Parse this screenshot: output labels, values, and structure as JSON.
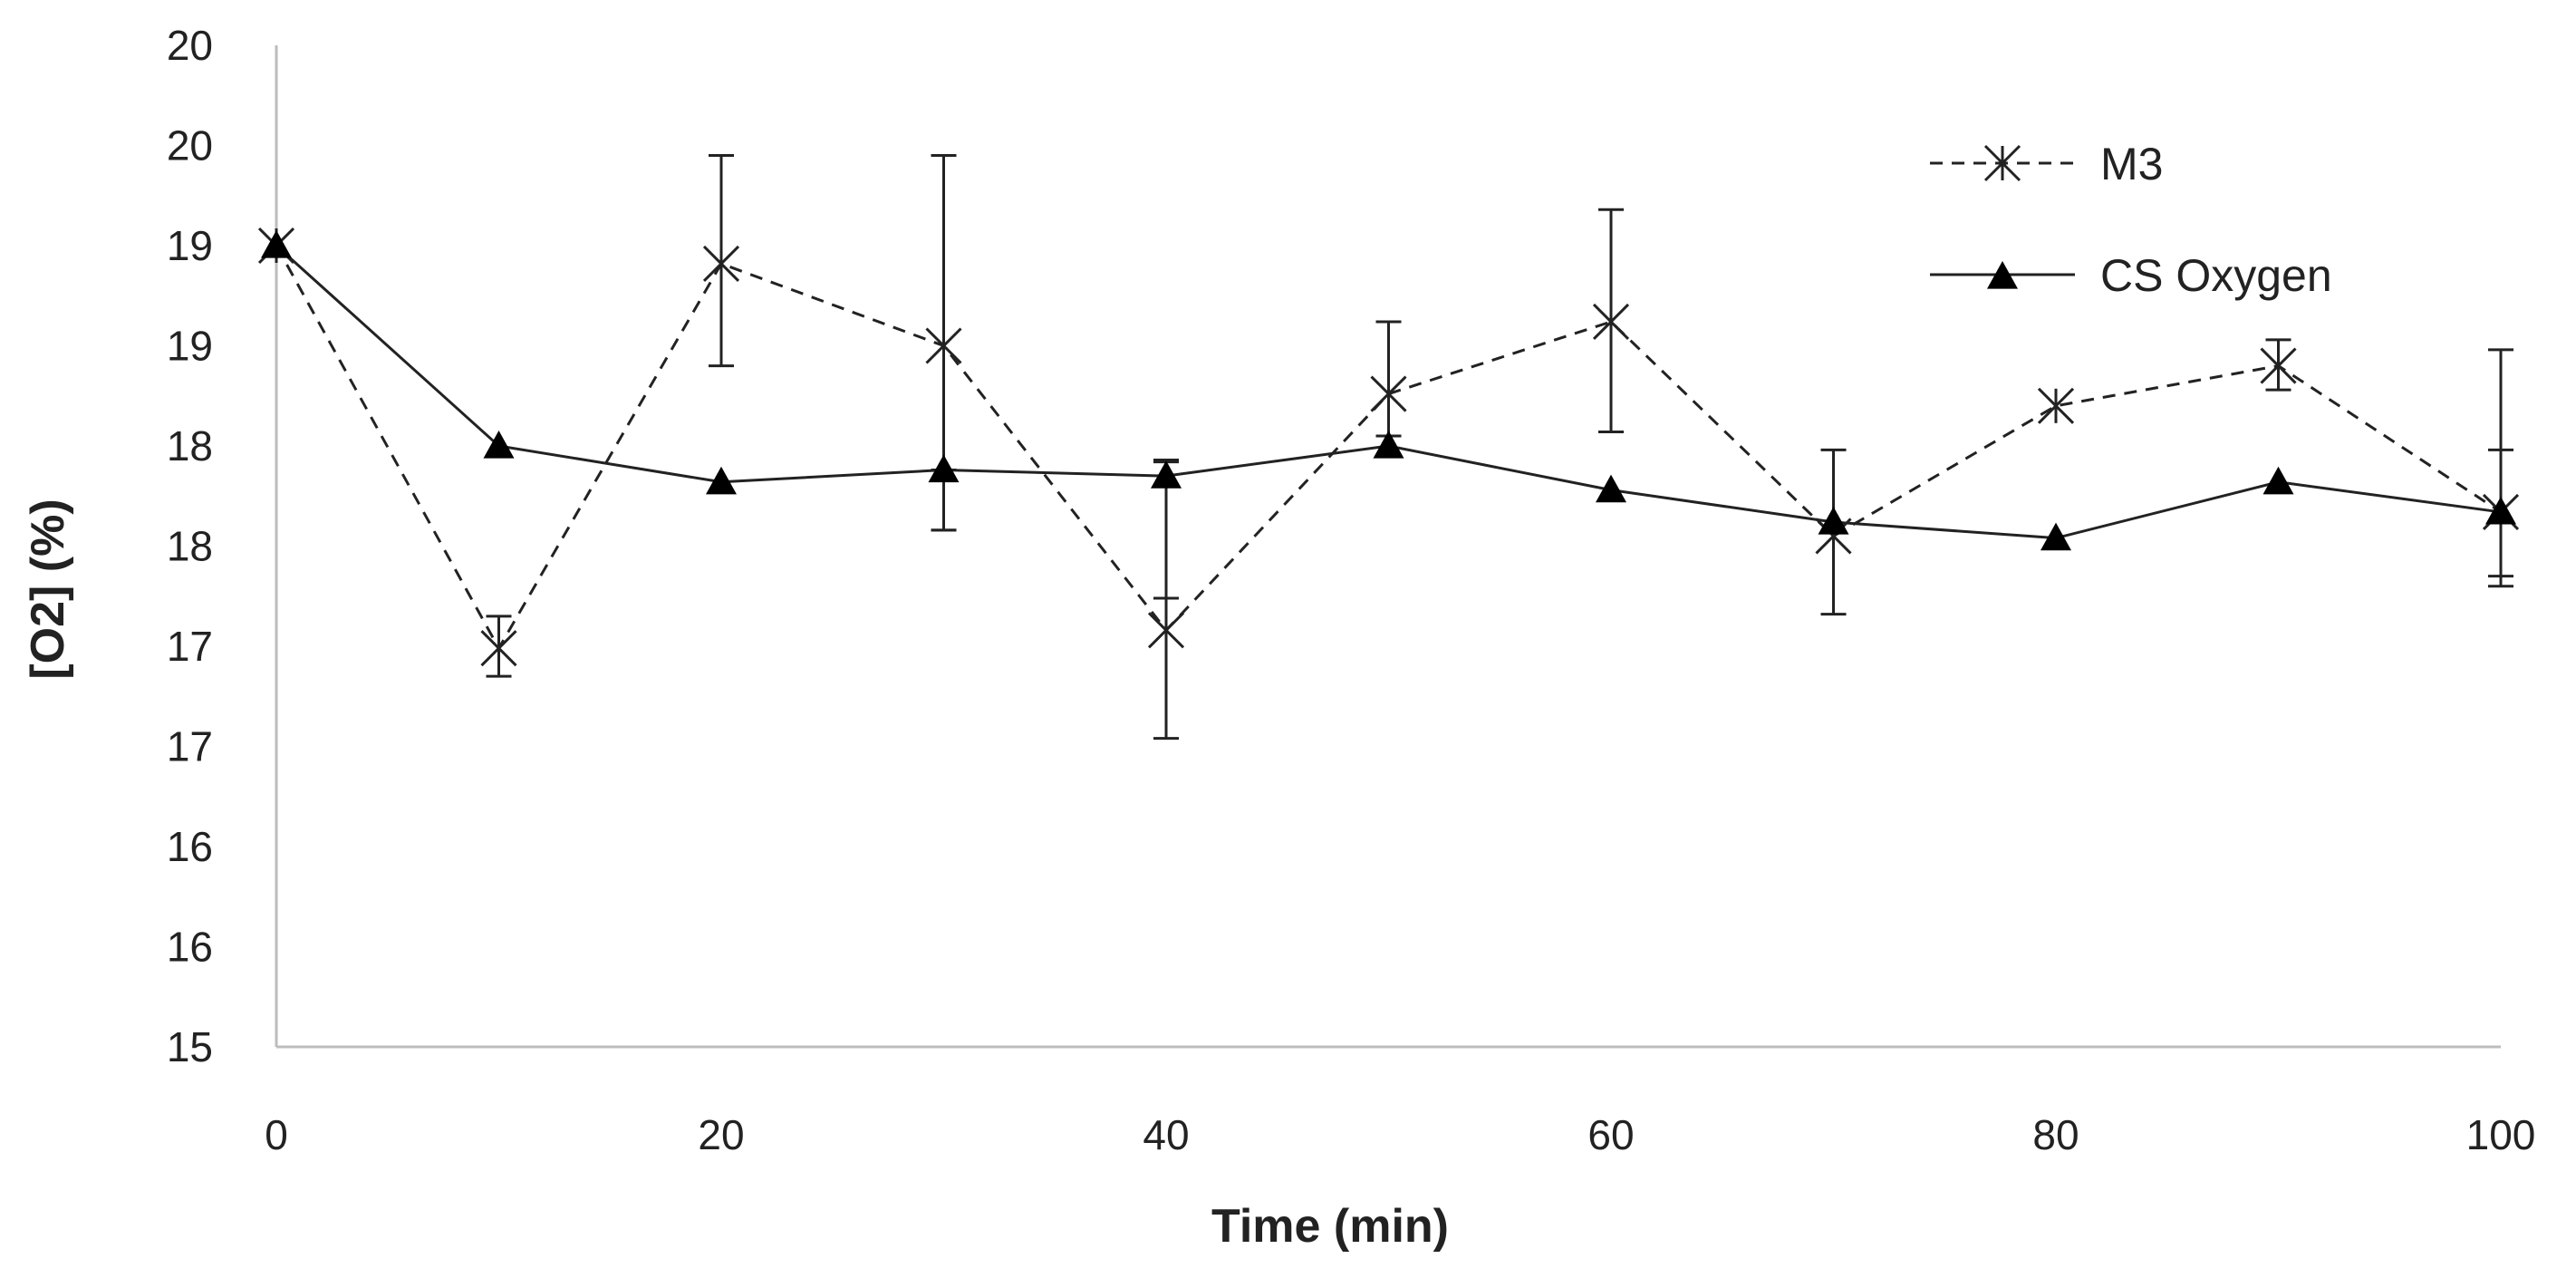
{
  "chart_data": {
    "type": "line",
    "xlabel": "Time (min)",
    "ylabel": "[O2] (%)",
    "xlim": [
      0,
      100
    ],
    "ylim": [
      15,
      20
    ],
    "grid": false,
    "legend_position": "top-right",
    "x_ticks": [
      0,
      20,
      40,
      60,
      80,
      100
    ],
    "x_tick_labels": [
      "0",
      "20",
      "40",
      "60",
      "80",
      "100"
    ],
    "y_ticks": [
      15,
      15.5,
      16,
      16.5,
      17,
      17.5,
      18,
      18.5,
      19,
      19.5,
      20
    ],
    "y_tick_labels": [
      "15",
      "16",
      "16",
      "17",
      "17",
      "18",
      "18",
      "19",
      "19",
      "20",
      "20"
    ],
    "x": [
      0,
      10,
      20,
      30,
      40,
      50,
      60,
      70,
      80,
      90,
      100
    ],
    "series": [
      {
        "name": "M3",
        "line_style": "dashed",
        "marker": "asterisk",
        "values": [
          19.0,
          16.99,
          18.91,
          18.5,
          17.08,
          18.26,
          18.62,
          17.55,
          18.2,
          18.4,
          17.67
        ],
        "error_low": [
          19.1,
          16.85,
          18.4,
          17.58,
          16.54,
          18.05,
          18.07,
          17.16,
          18.2,
          18.28,
          17.35
        ],
        "error_high": [
          19.1,
          17.15,
          19.45,
          19.45,
          17.92,
          18.62,
          19.18,
          17.98,
          18.2,
          18.53,
          17.98
        ]
      },
      {
        "name": "CS Oxygen",
        "line_style": "solid",
        "marker": "triangle",
        "values": [
          19.0,
          18.0,
          17.82,
          17.88,
          17.85,
          18.0,
          17.78,
          17.62,
          17.54,
          17.82,
          17.67
        ],
        "error_low": [
          19.0,
          18.0,
          17.82,
          17.58,
          17.24,
          18.0,
          17.78,
          17.62,
          17.54,
          17.82,
          17.3
        ],
        "error_high": [
          19.0,
          18.0,
          17.82,
          17.88,
          17.93,
          18.0,
          17.78,
          17.62,
          17.54,
          17.82,
          18.48
        ]
      }
    ]
  }
}
